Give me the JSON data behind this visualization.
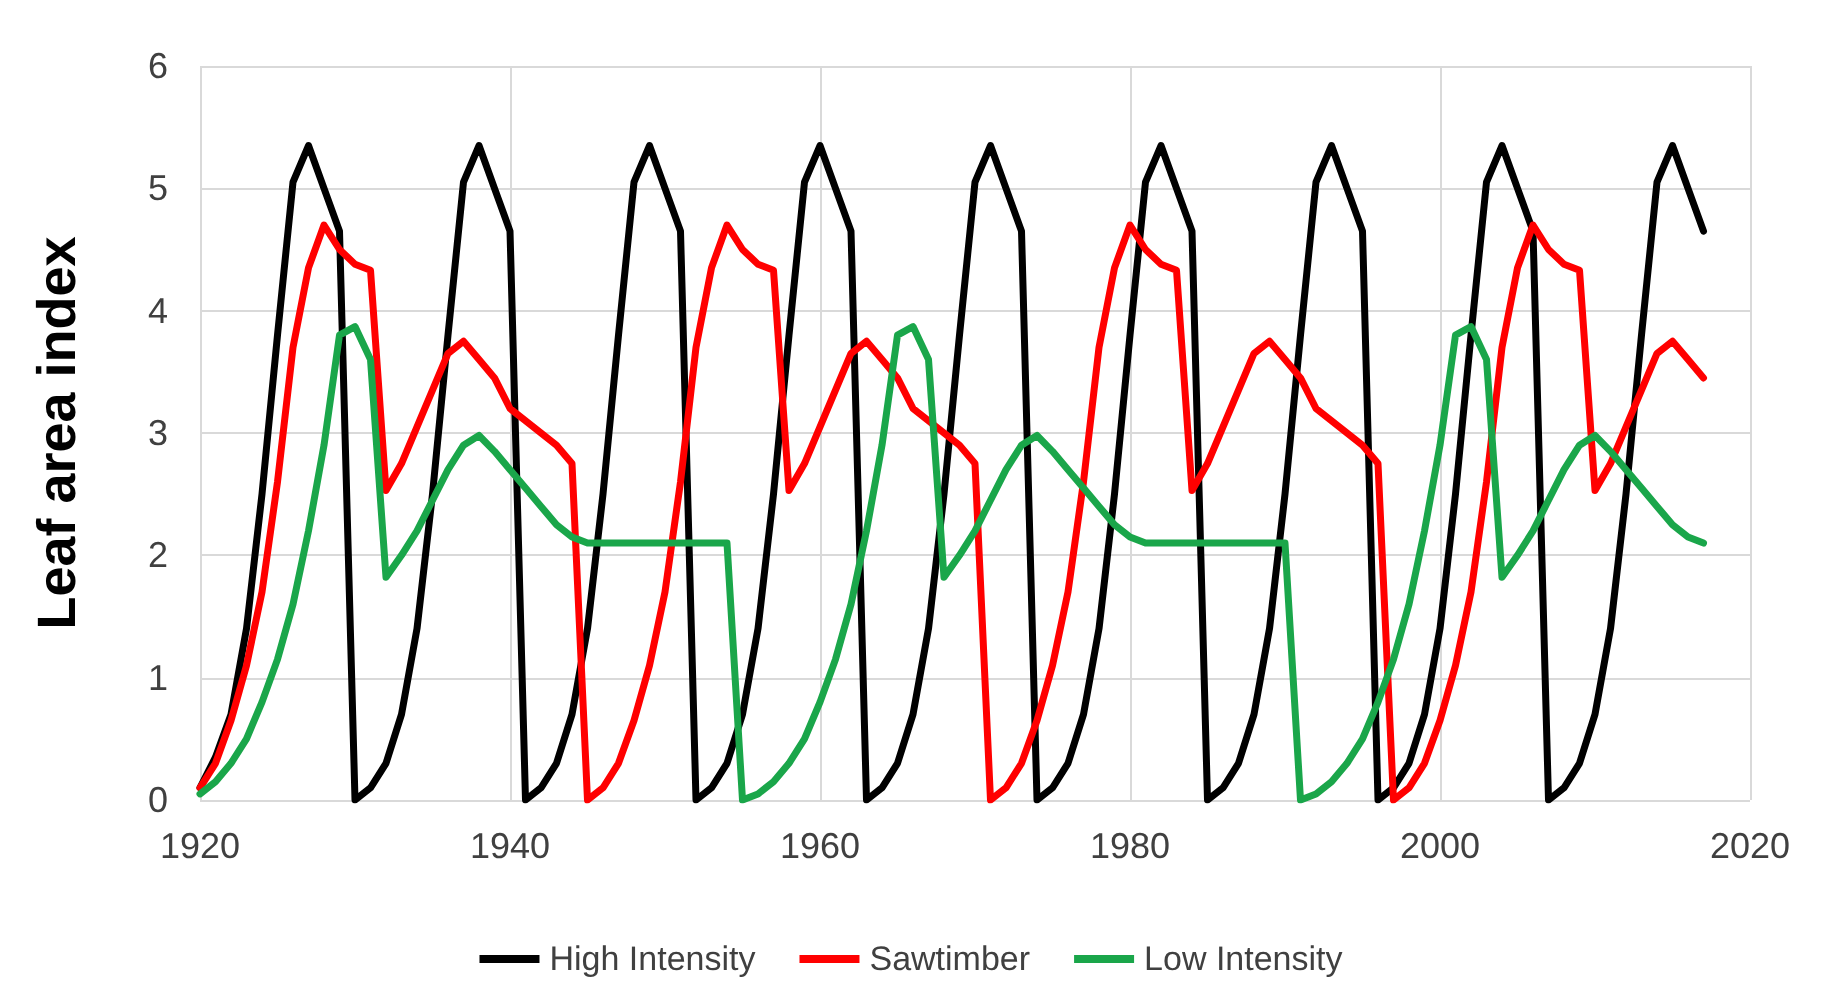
{
  "chart_data": {
    "type": "line",
    "ylabel": "Leaf area index",
    "x": [
      1920,
      1921,
      1922,
      1923,
      1924,
      1925,
      1926,
      1927,
      1928,
      1929,
      1930,
      1931,
      1932,
      1933,
      1934,
      1935,
      1936,
      1937,
      1938,
      1939,
      1940,
      1941,
      1942,
      1943,
      1944,
      1945,
      1946,
      1947,
      1948,
      1949,
      1950,
      1951,
      1952,
      1953,
      1954,
      1955,
      1956,
      1957,
      1958,
      1959,
      1960,
      1961,
      1962,
      1963,
      1964,
      1965,
      1966,
      1967,
      1968,
      1969,
      1970,
      1971,
      1972,
      1973,
      1974,
      1975,
      1976,
      1977,
      1978,
      1979,
      1980,
      1981,
      1982,
      1983,
      1984,
      1985,
      1986,
      1987,
      1988,
      1989,
      1990,
      1991,
      1992,
      1993,
      1994,
      1995,
      1996,
      1997,
      1998,
      1999,
      2000,
      2001,
      2002,
      2003,
      2004,
      2005,
      2006,
      2007,
      2008,
      2009,
      2010,
      2011,
      2012,
      2013,
      2014,
      2015,
      2016,
      2017
    ],
    "series": [
      {
        "name": "High Intensity",
        "color": "#000000",
        "values": [
          0.1,
          0.35,
          0.7,
          1.4,
          2.5,
          3.8,
          5.05,
          5.35,
          5.0,
          4.65,
          0,
          0.1,
          0.3,
          0.7,
          1.4,
          2.5,
          3.8,
          5.05,
          5.35,
          5.0,
          4.65,
          0,
          0.1,
          0.3,
          0.7,
          1.4,
          2.5,
          3.8,
          5.05,
          5.35,
          5.0,
          4.65,
          0,
          0.1,
          0.3,
          0.7,
          1.4,
          2.5,
          3.8,
          5.05,
          5.35,
          5.0,
          4.65,
          0,
          0.1,
          0.3,
          0.7,
          1.4,
          2.5,
          3.8,
          5.05,
          5.35,
          5.0,
          4.65,
          0,
          0.1,
          0.3,
          0.7,
          1.4,
          2.5,
          3.8,
          5.05,
          5.35,
          5.0,
          4.65,
          0,
          0.1,
          0.3,
          0.7,
          1.4,
          2.5,
          3.8,
          5.05,
          5.35,
          5.0,
          4.65,
          0,
          0.1,
          0.3,
          0.7,
          1.4,
          2.5,
          3.8,
          5.05,
          5.35,
          5.0,
          4.65,
          0,
          0.1,
          0.3,
          0.7,
          1.4,
          2.5,
          3.8,
          5.05,
          5.35,
          5.0,
          4.65
        ]
      },
      {
        "name": "Sawtimber",
        "color": "#ff0000",
        "values": [
          0.1,
          0.3,
          0.65,
          1.1,
          1.7,
          2.6,
          3.7,
          4.35,
          4.7,
          4.5,
          4.38,
          4.33,
          2.53,
          2.75,
          3.05,
          3.35,
          3.65,
          3.75,
          3.6,
          3.45,
          3.2,
          3.1,
          3.0,
          2.9,
          2.75,
          0,
          0.1,
          0.3,
          0.65,
          1.1,
          1.7,
          2.6,
          3.7,
          4.35,
          4.7,
          4.5,
          4.38,
          4.33,
          2.53,
          2.75,
          3.05,
          3.35,
          3.65,
          3.75,
          3.6,
          3.45,
          3.2,
          3.1,
          3.0,
          2.9,
          2.75,
          0,
          0.1,
          0.3,
          0.65,
          1.1,
          1.7,
          2.6,
          3.7,
          4.35,
          4.7,
          4.5,
          4.38,
          4.33,
          2.53,
          2.75,
          3.05,
          3.35,
          3.65,
          3.75,
          3.6,
          3.45,
          3.2,
          3.1,
          3.0,
          2.9,
          2.75,
          0,
          0.1,
          0.3,
          0.65,
          1.1,
          1.7,
          2.6,
          3.7,
          4.35,
          4.7,
          4.5,
          4.38,
          4.33,
          2.53,
          2.75,
          3.05,
          3.35,
          3.65,
          3.75,
          3.6,
          3.45
        ]
      },
      {
        "name": "Low Intensity",
        "color": "#1aa64a",
        "values": [
          0.05,
          0.15,
          0.3,
          0.5,
          0.8,
          1.15,
          1.6,
          2.2,
          2.9,
          3.8,
          3.87,
          3.6,
          1.82,
          2.0,
          2.2,
          2.45,
          2.7,
          2.9,
          2.98,
          2.85,
          2.7,
          2.55,
          2.4,
          2.25,
          2.15,
          2.1,
          2.1,
          2.1,
          2.1,
          2.1,
          2.1,
          2.1,
          2.1,
          2.1,
          2.1,
          0,
          0.05,
          0.15,
          0.3,
          0.5,
          0.8,
          1.15,
          1.6,
          2.2,
          2.9,
          3.8,
          3.87,
          3.6,
          1.82,
          2.0,
          2.2,
          2.45,
          2.7,
          2.9,
          2.98,
          2.85,
          2.7,
          2.55,
          2.4,
          2.25,
          2.15,
          2.1,
          2.1,
          2.1,
          2.1,
          2.1,
          2.1,
          2.1,
          2.1,
          2.1,
          2.1,
          0,
          0.05,
          0.15,
          0.3,
          0.5,
          0.8,
          1.15,
          1.6,
          2.2,
          2.9,
          3.8,
          3.87,
          3.6,
          1.82,
          2.0,
          2.2,
          2.45,
          2.7,
          2.9,
          2.98,
          2.85,
          2.7,
          2.55,
          2.4,
          2.25,
          2.15,
          2.1
        ]
      }
    ],
    "xlim": [
      1920,
      2020
    ],
    "xticks": [
      1920,
      1940,
      1960,
      1980,
      2000,
      2020
    ],
    "ylim": [
      0,
      6
    ],
    "yticks": [
      0,
      1,
      2,
      3,
      4,
      5,
      6
    ],
    "grid": true,
    "legend": "bottom",
    "marker": "none",
    "line_style": "solid"
  }
}
